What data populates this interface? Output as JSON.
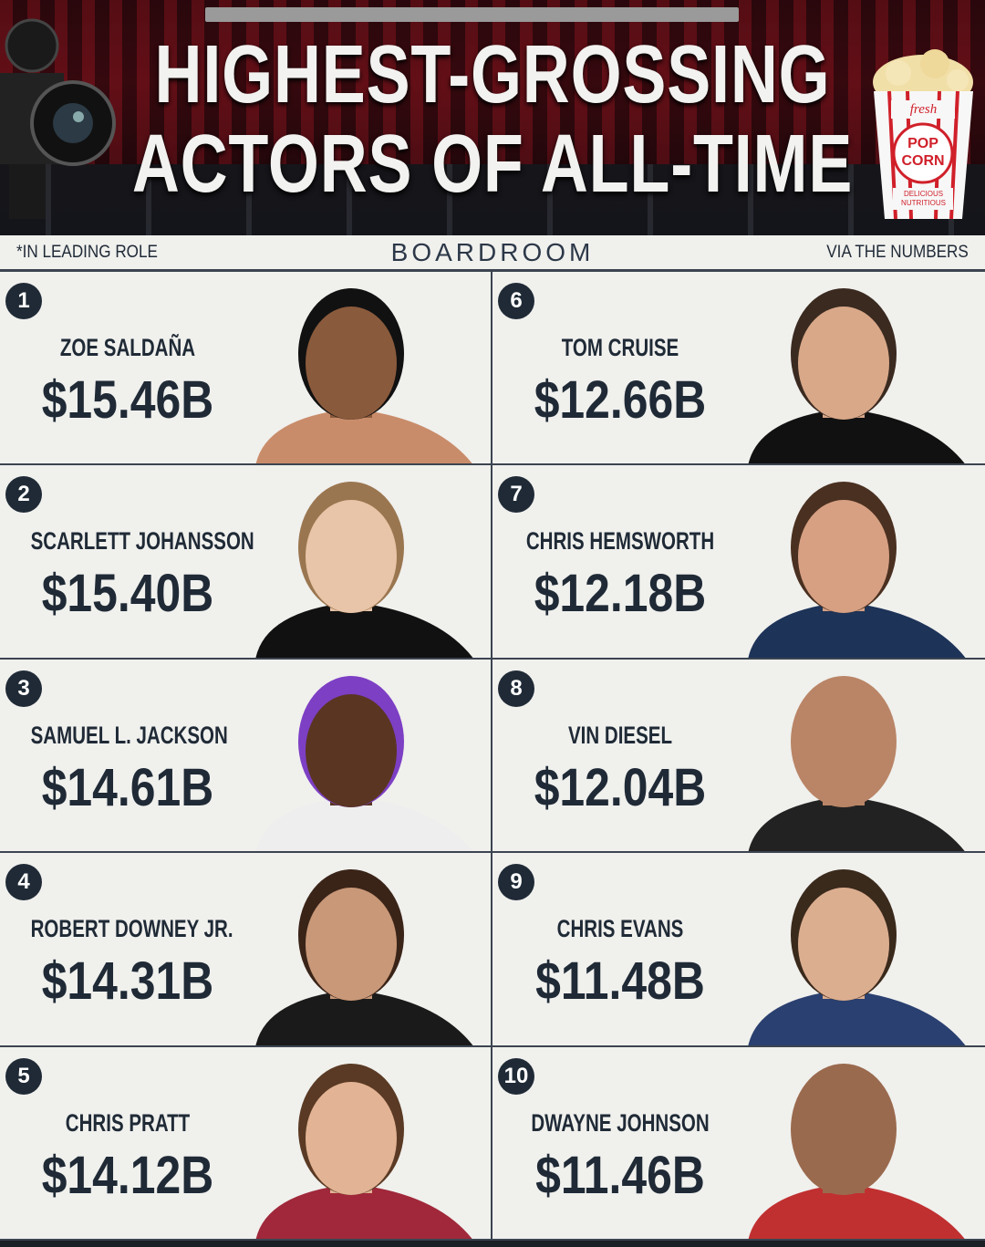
{
  "header": {
    "title_line1": "HIGHEST-GROSSING",
    "title_line2": "ACTORS OF ALL-TIME"
  },
  "strip": {
    "note": "*IN LEADING ROLE",
    "brand": "BOARDROOM",
    "source": "VIA THE NUMBERS"
  },
  "actors": [
    {
      "rank": "1",
      "name": "ZOE SALDAÑA",
      "gross": "$15.46B"
    },
    {
      "rank": "2",
      "name": "SCARLETT JOHANSSON",
      "gross": "$15.40B"
    },
    {
      "rank": "3",
      "name": "SAMUEL L. JACKSON",
      "gross": "$14.61B"
    },
    {
      "rank": "4",
      "name": "ROBERT DOWNEY JR.",
      "gross": "$14.31B"
    },
    {
      "rank": "5",
      "name": "CHRIS PRATT",
      "gross": "$14.12B"
    },
    {
      "rank": "6",
      "name": "TOM CRUISE",
      "gross": "$12.66B"
    },
    {
      "rank": "7",
      "name": "CHRIS HEMSWORTH",
      "gross": "$12.18B"
    },
    {
      "rank": "8",
      "name": "VIN DIESEL",
      "gross": "$12.04B"
    },
    {
      "rank": "9",
      "name": "CHRIS EVANS",
      "gross": "$11.48B"
    },
    {
      "rank": "10",
      "name": "DWAYNE JOHNSON",
      "gross": "$11.46B"
    }
  ],
  "popcorn_logo": {
    "text1": "fresh",
    "text2": "POP CORN",
    "text3": "DELICIOUS NUTRITIOUS"
  },
  "colors": {
    "text": "#1f2a36",
    "background": "#f0f0ed",
    "popcorn_red": "#d0202a"
  }
}
